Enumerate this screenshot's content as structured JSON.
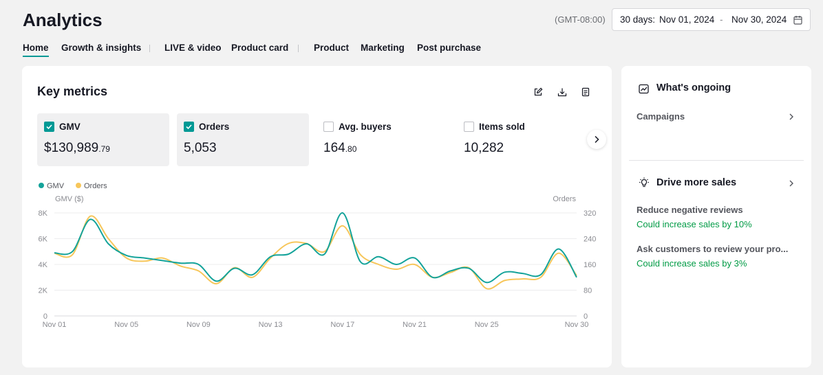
{
  "header": {
    "title": "Analytics",
    "timezone": "(GMT-08:00)",
    "date_range": {
      "label": "30 days:",
      "start": "Nov 01, 2024",
      "separator": "-",
      "end": "Nov 30, 2024",
      "icon": "calendar-icon"
    }
  },
  "tabs": [
    {
      "label": "Home",
      "active": true
    },
    {
      "label": "Growth & insights",
      "active": false
    },
    {
      "label": "LIVE & video",
      "active": false
    },
    {
      "label": "Product card",
      "active": false
    },
    {
      "label": "Product",
      "active": false
    },
    {
      "label": "Marketing",
      "active": false
    },
    {
      "label": "Post purchase",
      "active": false
    }
  ],
  "key_metrics": {
    "title": "Key metrics",
    "tools": [
      "edit-icon",
      "download-icon",
      "document-icon"
    ],
    "metrics": [
      {
        "label": "GMV",
        "value_main": "$130,989",
        "value_decimal": ".79",
        "checked": true
      },
      {
        "label": "Orders",
        "value_main": "5,053",
        "value_decimal": "",
        "checked": true
      },
      {
        "label": "Avg. buyers",
        "value_main": "164",
        "value_decimal": ".80",
        "checked": false
      },
      {
        "label": "Items sold",
        "value_main": "10,282",
        "value_decimal": "",
        "checked": false
      }
    ]
  },
  "colors": {
    "accent": "#009995",
    "gmv": "#14a39a",
    "orders": "#f7c65a",
    "positive": "#009b45"
  },
  "chart_data": {
    "type": "line",
    "legend": [
      "GMV",
      "Orders"
    ],
    "legend_position": "top-left",
    "grid": true,
    "left_axis": {
      "label": "GMV ($)",
      "ticks": [
        "0",
        "2K",
        "4K",
        "6K",
        "8K"
      ],
      "range": [
        0,
        8000
      ]
    },
    "right_axis": {
      "label": "Orders",
      "ticks": [
        "0",
        "80",
        "160",
        "240",
        "320"
      ],
      "range": [
        0,
        320
      ]
    },
    "x_ticks": [
      {
        "day": 1,
        "label": "Nov 01"
      },
      {
        "day": 5,
        "label": "Nov 05"
      },
      {
        "day": 9,
        "label": "Nov 09"
      },
      {
        "day": 13,
        "label": "Nov 13"
      },
      {
        "day": 17,
        "label": "Nov 17"
      },
      {
        "day": 21,
        "label": "Nov 21"
      },
      {
        "day": 25,
        "label": "Nov 25"
      },
      {
        "day": 30,
        "label": "Nov 30"
      }
    ],
    "x": [
      1,
      2,
      3,
      4,
      5,
      6,
      7,
      8,
      9,
      10,
      11,
      12,
      13,
      14,
      15,
      16,
      17,
      18,
      19,
      20,
      21,
      22,
      23,
      24,
      25,
      26,
      27,
      28,
      29,
      30
    ],
    "series": [
      {
        "name": "GMV",
        "axis": "left",
        "values": [
          4900,
          5000,
          7500,
          5600,
          4700,
          4500,
          4300,
          4100,
          4000,
          2700,
          3700,
          3200,
          4600,
          4800,
          5600,
          4800,
          8000,
          4200,
          4600,
          4000,
          4500,
          3000,
          3500,
          3700,
          2600,
          3400,
          3300,
          3200,
          5200,
          3000
        ]
      },
      {
        "name": "Orders",
        "axis": "right",
        "values": [
          195,
          190,
          310,
          240,
          180,
          170,
          180,
          155,
          140,
          100,
          150,
          120,
          180,
          225,
          225,
          200,
          280,
          190,
          160,
          145,
          160,
          120,
          135,
          150,
          85,
          110,
          115,
          120,
          195,
          125
        ]
      }
    ]
  },
  "sidebar": {
    "ongoing": {
      "title": "What's ongoing",
      "icon": "trend-chart-icon",
      "link": "Campaigns"
    },
    "drive": {
      "title": "Drive more sales",
      "icon": "lightbulb-icon",
      "tips": [
        {
          "title": "Reduce negative reviews",
          "sub": "Could increase sales by 10%"
        },
        {
          "title": "Ask customers to review your pro...",
          "sub": "Could increase sales by 3%"
        }
      ]
    }
  }
}
